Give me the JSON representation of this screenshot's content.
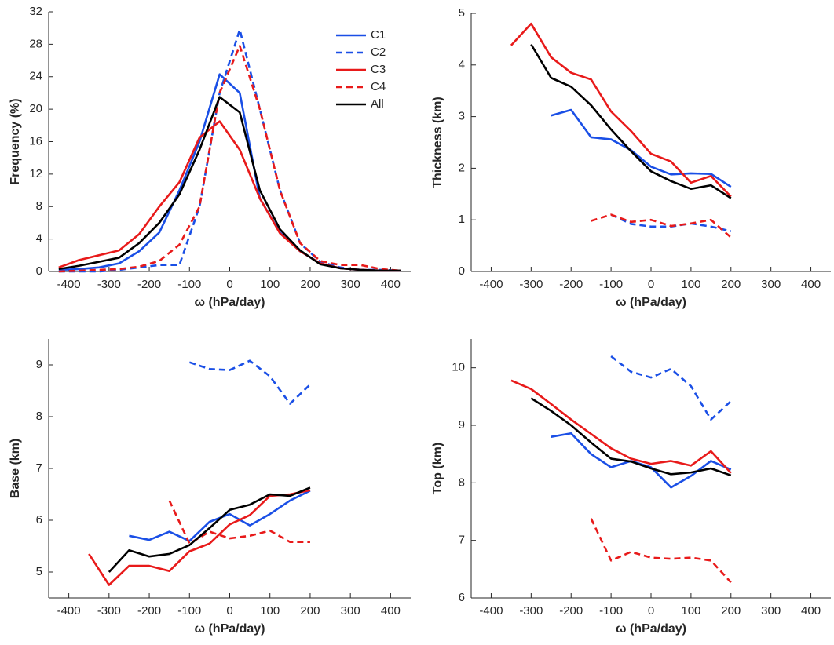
{
  "chart_data": [
    {
      "type": "line",
      "xlabel": "ω (hPa/day)",
      "ylabel": "Frequency (%)",
      "x": [
        -425,
        -375,
        -325,
        -275,
        -225,
        -175,
        -125,
        -75,
        -25,
        25,
        75,
        125,
        175,
        225,
        275,
        325,
        375,
        425
      ],
      "xlim": [
        -450,
        450
      ],
      "xticks": [
        -400,
        -300,
        -200,
        -100,
        0,
        100,
        200,
        300,
        400
      ],
      "ylim": [
        0,
        32
      ],
      "yticks": [
        0,
        4,
        8,
        12,
        16,
        20,
        24,
        28,
        32
      ],
      "grid": false,
      "legend": "upper right",
      "series": [
        {
          "name": "C1",
          "color": "#1a4fe6",
          "linestyle": "solid",
          "values": [
            0.2,
            0.3,
            0.5,
            1.0,
            2.5,
            4.8,
            10,
            16,
            24.3,
            22,
            9,
            4.8,
            2.5,
            1,
            0.4,
            0.2,
            0.1,
            0.1
          ]
        },
        {
          "name": "C2",
          "color": "#1a4fe6",
          "linestyle": "dashed",
          "values": [
            0,
            0,
            0,
            0.2,
            0.5,
            0.8,
            0.8,
            8,
            22,
            29.8,
            20,
            10,
            3.5,
            1.2,
            0.5,
            0.2,
            0.2,
            0.1
          ]
        },
        {
          "name": "C3",
          "color": "#e81a1a",
          "linestyle": "solid",
          "values": [
            0.5,
            1.4,
            2,
            2.6,
            4.6,
            8,
            11,
            16.5,
            18.5,
            15,
            9,
            4.7,
            2.5,
            1,
            0.4,
            0.2,
            0.1,
            0.1
          ]
        },
        {
          "name": "C4",
          "color": "#e81a1a",
          "linestyle": "dashed",
          "values": [
            0,
            0.1,
            0.2,
            0.3,
            0.6,
            1.3,
            3.3,
            8,
            22,
            27.8,
            20,
            10,
            3.5,
            1.3,
            0.8,
            0.8,
            0.3,
            0.1
          ]
        },
        {
          "name": "All",
          "color": "#000000",
          "linestyle": "solid",
          "values": [
            0.3,
            0.7,
            1.2,
            1.7,
            3.5,
            6,
            9.5,
            15,
            21.5,
            19.6,
            10,
            5.2,
            2.6,
            0.9,
            0.4,
            0.2,
            0.1,
            0.1
          ]
        }
      ]
    },
    {
      "type": "line",
      "xlabel": "ω (hPa/day)",
      "ylabel": "Thickness (km)",
      "x": [
        -350,
        -300,
        -250,
        -200,
        -150,
        -100,
        -50,
        0,
        50,
        100,
        150,
        200
      ],
      "xlim": [
        -450,
        450
      ],
      "xticks": [
        -400,
        -300,
        -200,
        -100,
        0,
        100,
        200,
        300,
        400
      ],
      "ylim": [
        0,
        5
      ],
      "yticks": [
        0,
        1,
        2,
        3,
        4,
        5
      ],
      "grid": false,
      "series": [
        {
          "color": "#1a4fe6",
          "linestyle": "solid",
          "values": [
            null,
            null,
            3.02,
            3.13,
            2.6,
            2.56,
            2.35,
            2.03,
            1.88,
            1.9,
            1.89,
            1.64
          ]
        },
        {
          "color": "#1a4fe6",
          "linestyle": "dashed",
          "values": [
            null,
            null,
            null,
            null,
            null,
            1.1,
            0.92,
            0.87,
            0.87,
            0.93,
            0.87,
            0.78
          ]
        },
        {
          "color": "#e81a1a",
          "linestyle": "solid",
          "values": [
            4.38,
            4.8,
            4.15,
            3.85,
            3.72,
            3.1,
            2.72,
            2.28,
            2.13,
            1.72,
            1.85,
            1.45
          ]
        },
        {
          "color": "#e81a1a",
          "linestyle": "dashed",
          "values": [
            null,
            null,
            null,
            null,
            0.98,
            1.1,
            0.96,
            1.0,
            0.88,
            0.93,
            1.0,
            0.66
          ]
        },
        {
          "color": "#000000",
          "linestyle": "solid",
          "values": [
            null,
            4.4,
            3.75,
            3.58,
            3.22,
            2.75,
            2.33,
            1.94,
            1.75,
            1.6,
            1.67,
            1.42
          ]
        }
      ]
    },
    {
      "type": "line",
      "xlabel": "ω (hPa/day)",
      "ylabel": "Base (km)",
      "x": [
        -350,
        -300,
        -250,
        -200,
        -150,
        -100,
        -50,
        0,
        50,
        100,
        150,
        200
      ],
      "xlim": [
        -450,
        450
      ],
      "xticks": [
        -400,
        -300,
        -200,
        -100,
        0,
        100,
        200,
        300,
        400
      ],
      "ylim": [
        4.5,
        9.5
      ],
      "yticks": [
        5,
        6,
        7,
        8,
        9
      ],
      "grid": false,
      "series": [
        {
          "color": "#1a4fe6",
          "linestyle": "solid",
          "values": [
            null,
            null,
            5.7,
            5.62,
            5.78,
            5.6,
            5.97,
            6.12,
            5.9,
            6.12,
            6.38,
            6.57
          ]
        },
        {
          "color": "#1a4fe6",
          "linestyle": "dashed",
          "values": [
            null,
            null,
            null,
            null,
            null,
            9.05,
            8.92,
            8.9,
            9.08,
            8.78,
            8.25,
            8.62
          ]
        },
        {
          "color": "#e81a1a",
          "linestyle": "solid",
          "values": [
            5.35,
            4.75,
            5.12,
            5.12,
            5.02,
            5.4,
            5.55,
            5.92,
            6.1,
            6.47,
            6.5,
            6.58
          ]
        },
        {
          "color": "#e81a1a",
          "linestyle": "dashed",
          "values": [
            null,
            null,
            null,
            null,
            6.38,
            5.55,
            5.78,
            5.65,
            5.7,
            5.8,
            5.58,
            5.58
          ]
        },
        {
          "color": "#000000",
          "linestyle": "solid",
          "values": [
            null,
            5.0,
            5.42,
            5.3,
            5.35,
            5.52,
            5.85,
            6.2,
            6.3,
            6.5,
            6.47,
            6.63
          ]
        }
      ]
    },
    {
      "type": "line",
      "xlabel": "ω (hPa/day)",
      "ylabel": "Top (km)",
      "x": [
        -350,
        -300,
        -250,
        -200,
        -150,
        -100,
        -50,
        0,
        50,
        100,
        150,
        200
      ],
      "xlim": [
        -450,
        450
      ],
      "xticks": [
        -400,
        -300,
        -200,
        -100,
        0,
        100,
        200,
        300,
        400
      ],
      "ylim": [
        6,
        10.5
      ],
      "yticks": [
        6,
        7,
        8,
        9,
        10
      ],
      "grid": false,
      "series": [
        {
          "color": "#1a4fe6",
          "linestyle": "solid",
          "values": [
            null,
            null,
            8.8,
            8.86,
            8.5,
            8.27,
            8.38,
            8.27,
            7.92,
            8.12,
            8.38,
            8.23
          ]
        },
        {
          "color": "#1a4fe6",
          "linestyle": "dashed",
          "values": [
            null,
            null,
            null,
            null,
            null,
            10.2,
            9.93,
            9.83,
            9.98,
            9.68,
            9.1,
            9.42
          ]
        },
        {
          "color": "#e81a1a",
          "linestyle": "solid",
          "values": [
            9.78,
            9.63,
            9.37,
            9.1,
            8.85,
            8.6,
            8.42,
            8.33,
            8.38,
            8.3,
            8.55,
            8.17
          ]
        },
        {
          "color": "#e81a1a",
          "linestyle": "dashed",
          "values": [
            null,
            null,
            null,
            null,
            7.38,
            6.65,
            6.8,
            6.7,
            6.68,
            6.7,
            6.65,
            6.27
          ]
        },
        {
          "color": "#000000",
          "linestyle": "solid",
          "values": [
            null,
            9.47,
            9.25,
            9.0,
            8.7,
            8.42,
            8.37,
            8.25,
            8.15,
            8.18,
            8.25,
            8.13
          ]
        }
      ]
    }
  ]
}
